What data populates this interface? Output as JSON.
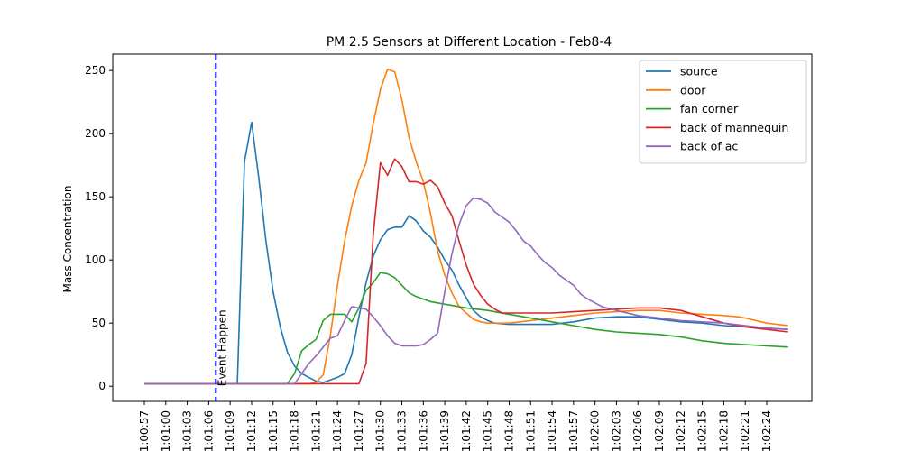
{
  "chart_data": {
    "type": "line",
    "title": "PM 2.5 Sensors at Different Location - Feb8-4",
    "xlabel": "",
    "ylabel": "Mass Concentration",
    "ylim": [
      -12,
      263
    ],
    "yticks": [
      0,
      50,
      100,
      150,
      200,
      250
    ],
    "x_tick_labels": [
      "1:00:57",
      "1:01:00",
      "1:01:03",
      "1:01:06",
      "1:01:09",
      "1:01:12",
      "1:01:15",
      "1:01:18",
      "1:01:21",
      "1:01:24",
      "1:01:27",
      "1:01:30",
      "1:01:33",
      "1:01:36",
      "1:01:39",
      "1:01:42",
      "1:01:45",
      "1:01:48",
      "1:01:51",
      "1:01:54",
      "1:01:57",
      "1:02:00",
      "1:02:03",
      "1:02:06",
      "1:02:09",
      "1:02:12",
      "1:02:15",
      "1:02:18",
      "1:02:21",
      "1:02:24"
    ],
    "grid": false,
    "legend_position": "top-right",
    "annotation": {
      "text": "Event Happen",
      "at_x_label": "1:01:07",
      "color": "#0000ff",
      "style": "dashed"
    },
    "series": [
      {
        "name": "source",
        "color": "#1f77b4",
        "points": [
          [
            "1:00:57",
            2
          ],
          [
            "1:01:00",
            2
          ],
          [
            "1:01:03",
            2
          ],
          [
            "1:01:06",
            2
          ],
          [
            "1:01:10",
            2
          ],
          [
            "1:01:11",
            178
          ],
          [
            "1:01:12",
            209
          ],
          [
            "1:01:13",
            165
          ],
          [
            "1:01:14",
            115
          ],
          [
            "1:01:15",
            75
          ],
          [
            "1:01:16",
            47
          ],
          [
            "1:01:17",
            27
          ],
          [
            "1:01:18",
            16
          ],
          [
            "1:01:19",
            10
          ],
          [
            "1:01:20",
            7
          ],
          [
            "1:01:21",
            4
          ],
          [
            "1:01:22",
            3
          ],
          [
            "1:01:23",
            5
          ],
          [
            "1:01:24",
            7
          ],
          [
            "1:01:25",
            10
          ],
          [
            "1:01:26",
            25
          ],
          [
            "1:01:27",
            55
          ],
          [
            "1:01:28",
            82
          ],
          [
            "1:01:29",
            103
          ],
          [
            "1:01:30",
            116
          ],
          [
            "1:01:31",
            124
          ],
          [
            "1:01:32",
            126
          ],
          [
            "1:01:33",
            126
          ],
          [
            "1:01:34",
            135
          ],
          [
            "1:01:35",
            131
          ],
          [
            "1:01:36",
            123
          ],
          [
            "1:01:37",
            118
          ],
          [
            "1:01:38",
            110
          ],
          [
            "1:01:39",
            100
          ],
          [
            "1:01:40",
            92
          ],
          [
            "1:01:41",
            80
          ],
          [
            "1:01:42",
            70
          ],
          [
            "1:01:43",
            60
          ],
          [
            "1:01:44",
            55
          ],
          [
            "1:01:45",
            52
          ],
          [
            "1:01:46",
            50
          ],
          [
            "1:01:48",
            49
          ],
          [
            "1:01:51",
            49
          ],
          [
            "1:01:54",
            49
          ],
          [
            "1:01:57",
            51
          ],
          [
            "1:02:00",
            54
          ],
          [
            "1:02:03",
            55
          ],
          [
            "1:02:06",
            55
          ],
          [
            "1:02:09",
            53
          ],
          [
            "1:02:12",
            51
          ],
          [
            "1:02:15",
            50
          ],
          [
            "1:02:18",
            48
          ],
          [
            "1:02:21",
            47
          ],
          [
            "1:02:24",
            46
          ],
          [
            "1:02:27",
            45
          ]
        ]
      },
      {
        "name": "door",
        "color": "#ff7f0e",
        "points": [
          [
            "1:00:57",
            2
          ],
          [
            "1:01:06",
            2
          ],
          [
            "1:01:18",
            2
          ],
          [
            "1:01:20",
            2
          ],
          [
            "1:01:21",
            3
          ],
          [
            "1:01:22",
            9
          ],
          [
            "1:01:23",
            40
          ],
          [
            "1:01:24",
            80
          ],
          [
            "1:01:25",
            115
          ],
          [
            "1:01:26",
            143
          ],
          [
            "1:01:27",
            163
          ],
          [
            "1:01:28",
            177
          ],
          [
            "1:01:29",
            208
          ],
          [
            "1:01:30",
            235
          ],
          [
            "1:01:31",
            251
          ],
          [
            "1:01:32",
            249
          ],
          [
            "1:01:33",
            227
          ],
          [
            "1:01:34",
            197
          ],
          [
            "1:01:35",
            178
          ],
          [
            "1:01:36",
            162
          ],
          [
            "1:01:37",
            137
          ],
          [
            "1:01:38",
            107
          ],
          [
            "1:01:39",
            88
          ],
          [
            "1:01:40",
            74
          ],
          [
            "1:01:41",
            63
          ],
          [
            "1:01:42",
            58
          ],
          [
            "1:01:43",
            53
          ],
          [
            "1:01:44",
            51
          ],
          [
            "1:01:45",
            50
          ],
          [
            "1:01:48",
            50
          ],
          [
            "1:01:51",
            52
          ],
          [
            "1:01:54",
            54
          ],
          [
            "1:01:57",
            56
          ],
          [
            "1:02:00",
            58
          ],
          [
            "1:02:03",
            59
          ],
          [
            "1:02:06",
            60
          ],
          [
            "1:02:09",
            60
          ],
          [
            "1:02:12",
            58
          ],
          [
            "1:02:15",
            57
          ],
          [
            "1:02:18",
            56
          ],
          [
            "1:02:20",
            55
          ],
          [
            "1:02:21",
            54
          ],
          [
            "1:02:24",
            50
          ],
          [
            "1:02:27",
            48
          ]
        ]
      },
      {
        "name": "fan corner",
        "color": "#2ca02c",
        "points": [
          [
            "1:00:57",
            2
          ],
          [
            "1:01:06",
            2
          ],
          [
            "1:01:15",
            2
          ],
          [
            "1:01:17",
            2
          ],
          [
            "1:01:18",
            10
          ],
          [
            "1:01:19",
            28
          ],
          [
            "1:01:20",
            33
          ],
          [
            "1:01:21",
            37
          ],
          [
            "1:01:22",
            52
          ],
          [
            "1:01:23",
            57
          ],
          [
            "1:01:24",
            57
          ],
          [
            "1:01:25",
            57
          ],
          [
            "1:01:26",
            51
          ],
          [
            "1:01:27",
            62
          ],
          [
            "1:01:28",
            76
          ],
          [
            "1:01:29",
            82
          ],
          [
            "1:01:30",
            90
          ],
          [
            "1:01:31",
            89
          ],
          [
            "1:01:32",
            86
          ],
          [
            "1:01:33",
            80
          ],
          [
            "1:01:34",
            74
          ],
          [
            "1:01:35",
            71
          ],
          [
            "1:01:36",
            69
          ],
          [
            "1:01:37",
            67
          ],
          [
            "1:01:39",
            65
          ],
          [
            "1:01:42",
            62
          ],
          [
            "1:01:45",
            60
          ],
          [
            "1:01:48",
            57
          ],
          [
            "1:01:51",
            54
          ],
          [
            "1:01:54",
            51
          ],
          [
            "1:01:57",
            48
          ],
          [
            "1:02:00",
            45
          ],
          [
            "1:02:03",
            43
          ],
          [
            "1:02:06",
            42
          ],
          [
            "1:02:09",
            41
          ],
          [
            "1:02:12",
            39
          ],
          [
            "1:02:15",
            36
          ],
          [
            "1:02:18",
            34
          ],
          [
            "1:02:21",
            33
          ],
          [
            "1:02:24",
            32
          ],
          [
            "1:02:27",
            31
          ]
        ]
      },
      {
        "name": "back of mannequin",
        "color": "#d62728",
        "points": [
          [
            "1:00:57",
            2
          ],
          [
            "1:01:06",
            2
          ],
          [
            "1:01:20",
            2
          ],
          [
            "1:01:27",
            2
          ],
          [
            "1:01:28",
            18
          ],
          [
            "1:01:29",
            120
          ],
          [
            "1:01:30",
            177
          ],
          [
            "1:01:31",
            167
          ],
          [
            "1:01:32",
            180
          ],
          [
            "1:01:33",
            174
          ],
          [
            "1:01:34",
            162
          ],
          [
            "1:01:35",
            162
          ],
          [
            "1:01:36",
            160
          ],
          [
            "1:01:37",
            163
          ],
          [
            "1:01:38",
            158
          ],
          [
            "1:01:39",
            145
          ],
          [
            "1:01:40",
            135
          ],
          [
            "1:01:41",
            115
          ],
          [
            "1:01:42",
            96
          ],
          [
            "1:01:43",
            81
          ],
          [
            "1:01:44",
            72
          ],
          [
            "1:01:45",
            65
          ],
          [
            "1:01:46",
            61
          ],
          [
            "1:01:47",
            58
          ],
          [
            "1:01:51",
            58
          ],
          [
            "1:01:54",
            58
          ],
          [
            "1:01:57",
            59
          ],
          [
            "1:02:00",
            60
          ],
          [
            "1:02:03",
            61
          ],
          [
            "1:02:06",
            62
          ],
          [
            "1:02:09",
            62
          ],
          [
            "1:02:12",
            60
          ],
          [
            "1:02:15",
            55
          ],
          [
            "1:02:18",
            50
          ],
          [
            "1:02:21",
            47
          ],
          [
            "1:02:24",
            45
          ],
          [
            "1:02:27",
            43
          ]
        ]
      },
      {
        "name": "back of ac",
        "color": "#9467bd",
        "points": [
          [
            "1:00:57",
            2
          ],
          [
            "1:01:06",
            2
          ],
          [
            "1:01:18",
            2
          ],
          [
            "1:01:19",
            10
          ],
          [
            "1:01:20",
            18
          ],
          [
            "1:01:21",
            24
          ],
          [
            "1:01:22",
            31
          ],
          [
            "1:01:23",
            38
          ],
          [
            "1:01:24",
            40
          ],
          [
            "1:01:25",
            52
          ],
          [
            "1:01:26",
            63
          ],
          [
            "1:01:27",
            62
          ],
          [
            "1:01:28",
            61
          ],
          [
            "1:01:29",
            55
          ],
          [
            "1:01:30",
            48
          ],
          [
            "1:01:31",
            40
          ],
          [
            "1:01:32",
            34
          ],
          [
            "1:01:33",
            32
          ],
          [
            "1:01:34",
            32
          ],
          [
            "1:01:35",
            32
          ],
          [
            "1:01:36",
            33
          ],
          [
            "1:01:37",
            37
          ],
          [
            "1:01:38",
            42
          ],
          [
            "1:01:39",
            75
          ],
          [
            "1:01:40",
            105
          ],
          [
            "1:01:41",
            128
          ],
          [
            "1:01:42",
            143
          ],
          [
            "1:01:43",
            149
          ],
          [
            "1:01:44",
            148
          ],
          [
            "1:01:45",
            145
          ],
          [
            "1:01:46",
            138
          ],
          [
            "1:01:47",
            134
          ],
          [
            "1:01:48",
            130
          ],
          [
            "1:01:49",
            123
          ],
          [
            "1:01:50",
            115
          ],
          [
            "1:01:51",
            111
          ],
          [
            "1:01:52",
            104
          ],
          [
            "1:01:53",
            98
          ],
          [
            "1:01:54",
            94
          ],
          [
            "1:01:55",
            88
          ],
          [
            "1:01:56",
            84
          ],
          [
            "1:01:57",
            80
          ],
          [
            "1:01:58",
            73
          ],
          [
            "1:01:59",
            69
          ],
          [
            "1:02:00",
            66
          ],
          [
            "1:02:01",
            63
          ],
          [
            "1:02:03",
            60
          ],
          [
            "1:02:06",
            56
          ],
          [
            "1:02:09",
            54
          ],
          [
            "1:02:12",
            52
          ],
          [
            "1:02:15",
            51
          ],
          [
            "1:02:18",
            50
          ],
          [
            "1:02:21",
            48
          ],
          [
            "1:02:24",
            46
          ],
          [
            "1:02:27",
            45
          ]
        ]
      }
    ]
  }
}
